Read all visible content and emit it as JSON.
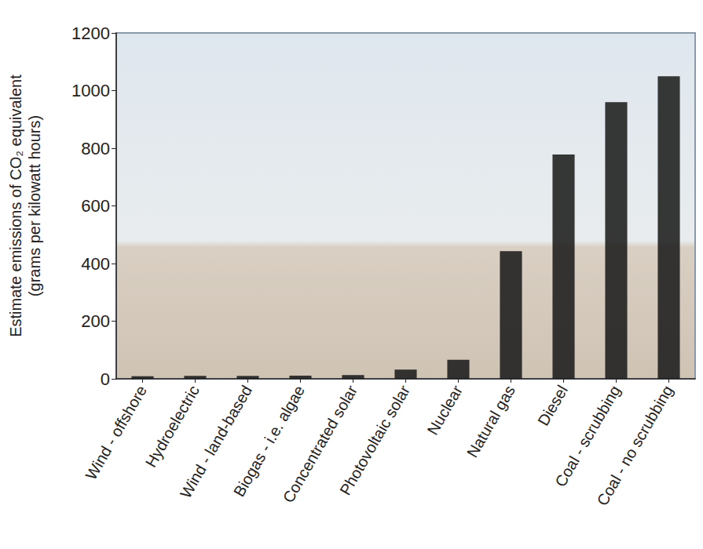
{
  "chart_data": {
    "type": "bar",
    "ylabel": "Estimate emissions of CO₂ equivalent\n(grams per kilowatt hours)",
    "categories": [
      "Wind - offshore",
      "Hydroelectric",
      "Wind - land-based",
      "Biogas - i.e. algae",
      "Concentrated solar",
      "Photovoltaic solar",
      "Nuclear",
      "Natural gas",
      "Diesel",
      "Coal - scrubbing",
      "Coal - no scrubbing"
    ],
    "values": [
      9,
      10,
      10,
      11,
      13,
      32,
      66,
      443,
      778,
      960,
      1050
    ],
    "color": "#1c1c1c",
    "ylim": [
      0,
      1200
    ],
    "yticks": [
      0,
      200,
      400,
      600,
      800,
      1000,
      1200
    ],
    "grid": false
  }
}
